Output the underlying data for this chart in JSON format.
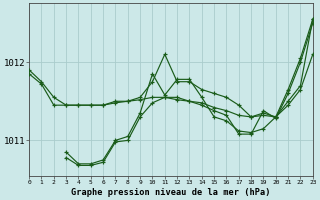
{
  "title": "Graphe pression niveau de la mer (hPa)",
  "background_color": "#cce8e8",
  "grid_color": "#aacccc",
  "line_color": "#1a5c1a",
  "xlim": [
    0,
    23
  ],
  "ylim": [
    1010.55,
    1012.75
  ],
  "yticks": [
    1011,
    1012
  ],
  "xtick_labels": [
    "0",
    "1",
    "2",
    "3",
    "4",
    "5",
    "6",
    "7",
    "8",
    "9",
    "10",
    "11",
    "12",
    "13",
    "14",
    "15",
    "16",
    "17",
    "18",
    "19",
    "20",
    "21",
    "22",
    "23"
  ],
  "series": [
    [
      1011.9,
      1011.75,
      1011.55,
      1011.45,
      1011.45,
      1011.45,
      1011.45,
      1011.5,
      1011.5,
      1011.55,
      1011.75,
      1012.1,
      1011.75,
      1011.75,
      1011.65,
      1011.6,
      1011.55,
      1011.45,
      1011.3,
      1011.35,
      1011.3,
      1011.5,
      1011.7,
      1012.55
    ],
    [
      1011.85,
      1011.72,
      1011.45,
      1011.45,
      1011.45,
      1011.45,
      1011.45,
      1011.48,
      1011.5,
      1011.52,
      1011.55,
      1011.55,
      1011.55,
      1011.5,
      1011.48,
      1011.42,
      1011.38,
      1011.32,
      1011.3,
      1011.32,
      1011.3,
      1011.45,
      1011.65,
      1012.1
    ],
    [
      null,
      null,
      null,
      1010.85,
      1010.7,
      1010.7,
      1010.75,
      1011.0,
      1011.05,
      1011.35,
      1011.85,
      1011.58,
      1011.78,
      1011.78,
      1011.55,
      1011.3,
      1011.25,
      1011.12,
      1011.1,
      1011.15,
      1011.3,
      1011.65,
      1012.05,
      1012.55
    ],
    [
      null,
      null,
      null,
      1010.78,
      1010.68,
      1010.68,
      1010.72,
      1010.98,
      1011.0,
      1011.3,
      1011.48,
      1011.55,
      1011.52,
      1011.5,
      1011.45,
      1011.38,
      1011.32,
      1011.08,
      1011.08,
      1011.38,
      1011.28,
      1011.6,
      1012.0,
      1012.5
    ]
  ]
}
